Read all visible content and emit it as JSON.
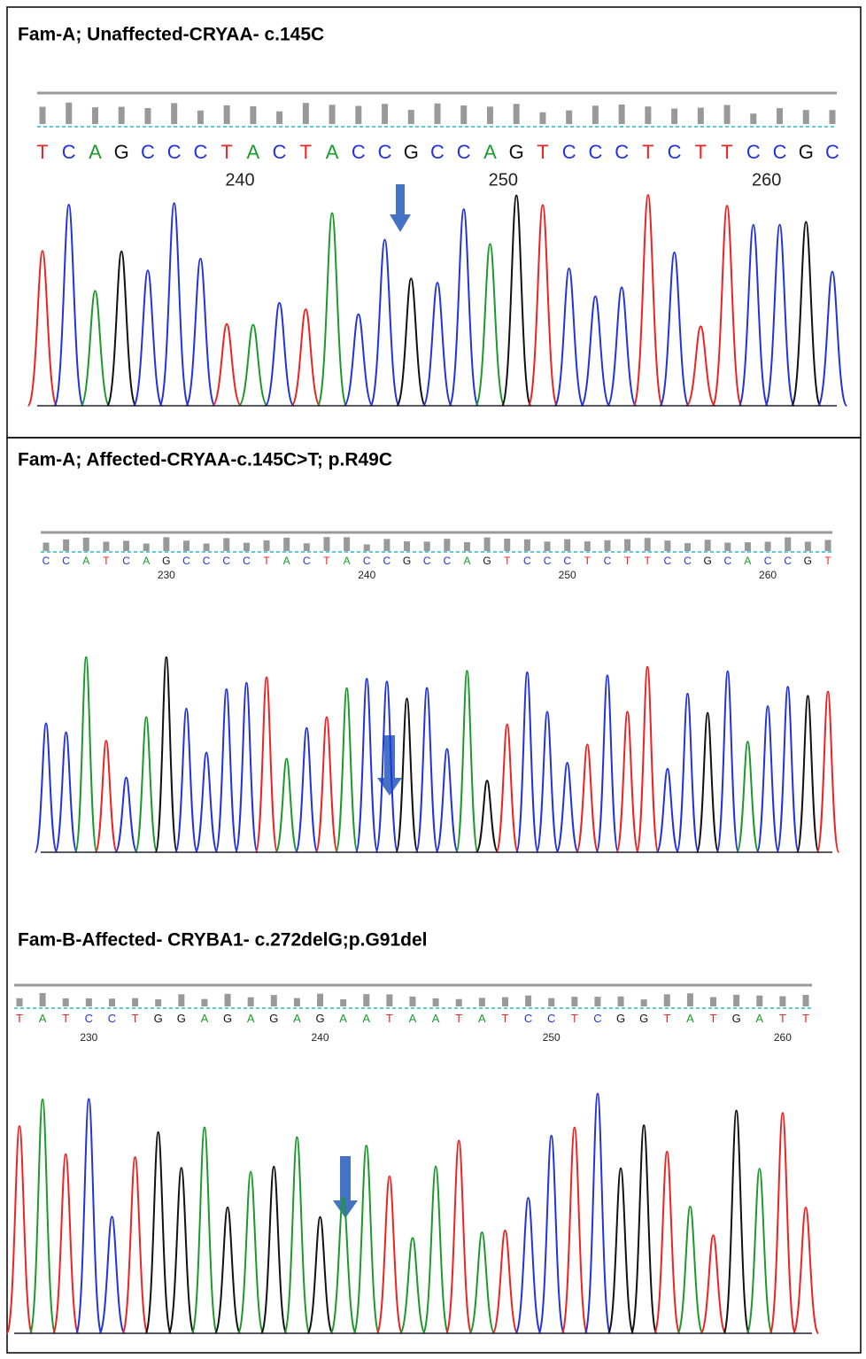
{
  "panels": [
    {
      "title": "Fam-A; Unaffected-CRYAA- c.145C",
      "sequence": "TCAGCCCTACTACCGCCAGTCCCTCTTCCGC",
      "positions": [
        240,
        250,
        260
      ]
    },
    {
      "title": "Fam-A;  Affected-CRYAA-c.145C>T; p.R49C",
      "sequence": "CCATCAGCCCCTACTACCGCCAGTCCCTCTTCCGCACCGT",
      "positions": [
        230,
        240,
        250,
        260
      ]
    },
    {
      "title": "Fam-B-Affected- CRYBA1- c.272delG;p.G91del",
      "sequence": "TATCCTGGAGAGAGAATAATATCCTCGGTATGATT",
      "positions": [
        230,
        240,
        250,
        260
      ]
    }
  ]
}
